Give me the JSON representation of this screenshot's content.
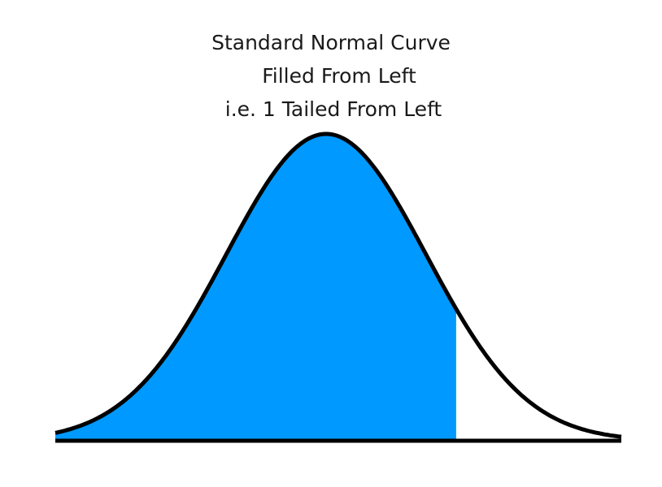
{
  "title": {
    "line1": "Standard Normal Curve",
    "line2": "Filled From Left",
    "line3": "i.e. 1 Tailed From Left"
  },
  "chart_data": {
    "type": "area",
    "distribution": "standard normal",
    "mean": 0,
    "sd": 1,
    "x_range": [
      -3.5,
      3.5
    ],
    "shaded_region": {
      "from": -3.5,
      "to": 1.3,
      "side": "left"
    },
    "tail": "1-tailed from left"
  },
  "colors": {
    "fill": "#0099ff",
    "curve": "#000000",
    "axis": "#000000",
    "text": "#1a1a1a",
    "background": "#ffffff"
  }
}
